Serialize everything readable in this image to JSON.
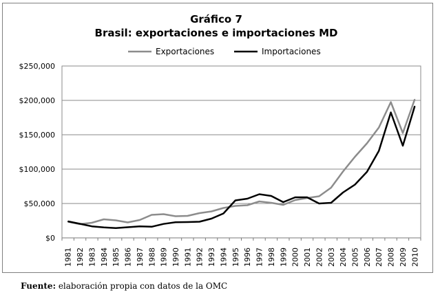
{
  "chart_data": {
    "type": "line",
    "title": "Gráfico 7",
    "subtitle": "Brasil: exportaciones e importaciones MD",
    "xlabel": "",
    "ylabel": "",
    "ylim": [
      0,
      250000
    ],
    "y_ticks": [
      0,
      50000,
      100000,
      150000,
      200000,
      250000
    ],
    "y_tick_labels": [
      "$0",
      "$50,000",
      "$100,000",
      "$150,000",
      "$200,000",
      "$250,000"
    ],
    "grid": true,
    "legend_position": "top",
    "x": [
      "1981",
      "1982",
      "1983",
      "1984",
      "1985",
      "1986",
      "1987",
      "1988",
      "1989",
      "1990",
      "1991",
      "1992",
      "1993",
      "1994",
      "1995",
      "1996",
      "1997",
      "1998",
      "1999",
      "2000",
      "2001",
      "2002",
      "2003",
      "2004",
      "2005",
      "2006",
      "2007",
      "2008",
      "2009",
      "2010"
    ],
    "series": [
      {
        "name": "Exportaciones",
        "color": "#8c8c8c",
        "values": [
          23500,
          20000,
          22000,
          27000,
          25500,
          22500,
          26000,
          33500,
          34500,
          31500,
          32000,
          36000,
          38500,
          43500,
          46500,
          47500,
          53000,
          51000,
          48000,
          55000,
          58000,
          60500,
          73000,
          96500,
          118000,
          137500,
          160500,
          197500,
          152500,
          201500
        ]
      },
      {
        "name": "Importaciones",
        "color": "#000000",
        "values": [
          24000,
          20500,
          16800,
          15200,
          14200,
          15500,
          16800,
          16200,
          20300,
          22800,
          23000,
          23500,
          28000,
          35500,
          54500,
          57000,
          63500,
          61000,
          52000,
          59000,
          59000,
          50000,
          51000,
          66000,
          77500,
          96000,
          126500,
          182500,
          134000,
          191500
        ]
      }
    ]
  },
  "source_note": {
    "label": "Fuente:",
    "text": " elaboración propia con datos de la OMC"
  }
}
